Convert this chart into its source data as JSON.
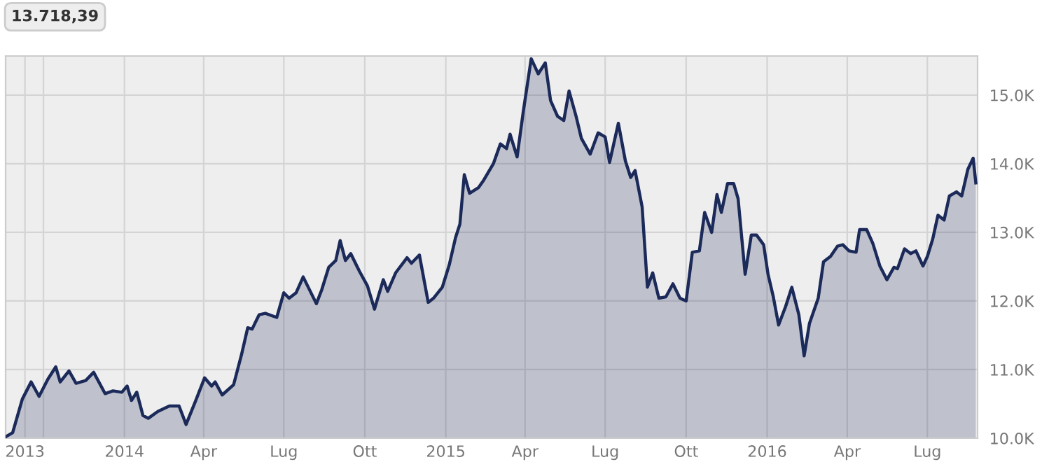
{
  "chart_data": {
    "type": "area",
    "annotations": [
      "13.718,39"
    ],
    "series": [
      {
        "color": "#1c2a5a",
        "x": [
          "2013-08-19",
          "2013-08-27",
          "2013-09-07",
          "2013-09-17",
          "2013-09-26",
          "2013-10-06",
          "2013-10-15",
          "2013-10-20",
          "2013-10-30",
          "2013-11-07",
          "2013-11-18",
          "2013-11-27",
          "2013-12-10",
          "2013-12-19",
          "2013-12-29",
          "2014-01-04",
          "2014-01-09",
          "2014-01-15",
          "2014-01-22",
          "2014-01-28",
          "2014-02-08",
          "2014-02-21",
          "2014-03-04",
          "2014-03-12",
          "2014-03-23",
          "2014-04-02",
          "2014-04-10",
          "2014-04-14",
          "2014-04-22",
          "2014-05-05",
          "2014-05-14",
          "2014-05-21",
          "2014-05-26",
          "2014-06-03",
          "2014-06-10",
          "2014-06-23",
          "2014-07-01",
          "2014-07-07",
          "2014-07-15",
          "2014-07-23",
          "2014-08-07",
          "2014-08-13",
          "2014-08-21",
          "2014-08-29",
          "2014-09-03",
          "2014-09-09",
          "2014-09-15",
          "2014-09-25",
          "2014-10-04",
          "2014-10-12",
          "2014-10-22",
          "2014-10-27",
          "2014-11-05",
          "2014-11-18",
          "2014-11-23",
          "2014-12-02",
          "2014-12-12",
          "2014-12-18",
          "2014-12-28",
          "2015-01-05",
          "2015-01-12",
          "2015-01-17",
          "2015-01-22",
          "2015-01-28",
          "2015-02-07",
          "2015-02-13",
          "2015-02-24",
          "2015-03-04",
          "2015-03-11",
          "2015-03-15",
          "2015-03-23",
          "2015-03-30",
          "2015-04-08",
          "2015-04-16",
          "2015-04-24",
          "2015-04-30",
          "2015-05-08",
          "2015-05-15",
          "2015-05-21",
          "2015-05-29",
          "2015-06-04",
          "2015-06-14",
          "2015-06-23",
          "2015-07-01",
          "2015-07-06",
          "2015-07-16",
          "2015-07-24",
          "2015-07-30",
          "2015-08-04",
          "2015-08-12",
          "2015-08-18",
          "2015-08-24",
          "2015-08-31",
          "2015-09-08",
          "2015-09-16",
          "2015-09-24",
          "2015-10-01",
          "2015-10-08",
          "2015-10-16",
          "2015-10-22",
          "2015-10-30",
          "2015-11-05",
          "2015-11-10",
          "2015-11-17",
          "2015-11-24",
          "2015-11-29",
          "2015-12-07",
          "2015-12-14",
          "2015-12-20",
          "2015-12-28",
          "2016-01-02",
          "2016-01-08",
          "2016-01-14",
          "2016-01-22",
          "2016-01-29",
          "2016-02-06",
          "2016-02-12",
          "2016-02-18",
          "2016-02-28",
          "2016-03-05",
          "2016-03-13",
          "2016-03-21",
          "2016-03-27",
          "2016-04-03",
          "2016-04-11",
          "2016-04-15",
          "2016-04-23",
          "2016-04-30",
          "2016-05-08",
          "2016-05-16",
          "2016-05-24",
          "2016-05-28",
          "2016-06-05",
          "2016-06-12",
          "2016-06-18",
          "2016-06-26",
          "2016-07-01",
          "2016-07-07",
          "2016-07-13",
          "2016-07-20",
          "2016-07-26",
          "2016-08-03",
          "2016-08-09",
          "2016-08-16",
          "2016-08-22",
          "2016-08-25"
        ],
        "values": [
          10020,
          10080,
          10570,
          10820,
          10610,
          10860,
          11040,
          10820,
          10980,
          10800,
          10840,
          10960,
          10650,
          10690,
          10670,
          10760,
          10550,
          10670,
          10330,
          10290,
          10390,
          10470,
          10470,
          10200,
          10550,
          10880,
          10760,
          10820,
          10630,
          10780,
          11220,
          11610,
          11590,
          11800,
          11820,
          11760,
          12120,
          12040,
          12120,
          12350,
          11960,
          12160,
          12490,
          12590,
          12880,
          12590,
          12690,
          12430,
          12220,
          11880,
          12310,
          12140,
          12410,
          12630,
          12550,
          12670,
          11980,
          12040,
          12200,
          12530,
          12920,
          13120,
          13840,
          13570,
          13650,
          13760,
          14000,
          14290,
          14220,
          14430,
          14100,
          14760,
          15530,
          15310,
          15470,
          14920,
          14690,
          14630,
          15060,
          14690,
          14370,
          14140,
          14450,
          14390,
          14020,
          14590,
          14040,
          13800,
          13900,
          13370,
          12200,
          12410,
          12040,
          12060,
          12250,
          12040,
          12000,
          12710,
          12730,
          13290,
          13000,
          13550,
          13290,
          13710,
          13710,
          13490,
          12390,
          12960,
          12960,
          12820,
          12390,
          12060,
          11650,
          11920,
          12200,
          11800,
          11200,
          11670,
          12040,
          12570,
          12650,
          12800,
          12820,
          12730,
          12710,
          13040,
          13040,
          12840,
          12510,
          12310,
          12490,
          12470,
          12760,
          12690,
          12730,
          12510,
          12650,
          12900,
          13250,
          13180,
          13530,
          13590,
          13530,
          13920,
          14080,
          13720
        ]
      }
    ],
    "xlim": [
      "2013-08-19",
      "2016-08-27"
    ],
    "xticks": [
      {
        "value": "2013-09-10",
        "label": "2013"
      },
      {
        "value": "2013-10-01",
        "label": null
      },
      {
        "value": "2014-01-01",
        "label": "2014"
      },
      {
        "value": "2014-04-01",
        "label": "Apr"
      },
      {
        "value": "2014-07-01",
        "label": "Lug"
      },
      {
        "value": "2014-10-01",
        "label": "Ott"
      },
      {
        "value": "2015-01-01",
        "label": "2015"
      },
      {
        "value": "2015-04-01",
        "label": "Apr"
      },
      {
        "value": "2015-07-01",
        "label": "Lug"
      },
      {
        "value": "2015-10-01",
        "label": "Ott"
      },
      {
        "value": "2016-01-01",
        "label": "2016"
      },
      {
        "value": "2016-04-01",
        "label": "Apr"
      },
      {
        "value": "2016-07-01",
        "label": "Lug"
      }
    ],
    "ylim": [
      10000,
      15570
    ],
    "yticks": [
      {
        "value": 10000,
        "label": "10.0K"
      },
      {
        "value": 11000,
        "label": "11.0K"
      },
      {
        "value": 12000,
        "label": "12.0K"
      },
      {
        "value": 13000,
        "label": "13.0K"
      },
      {
        "value": 14000,
        "label": "14.0K"
      },
      {
        "value": 15000,
        "label": "15.0K"
      }
    ],
    "grid": true
  }
}
